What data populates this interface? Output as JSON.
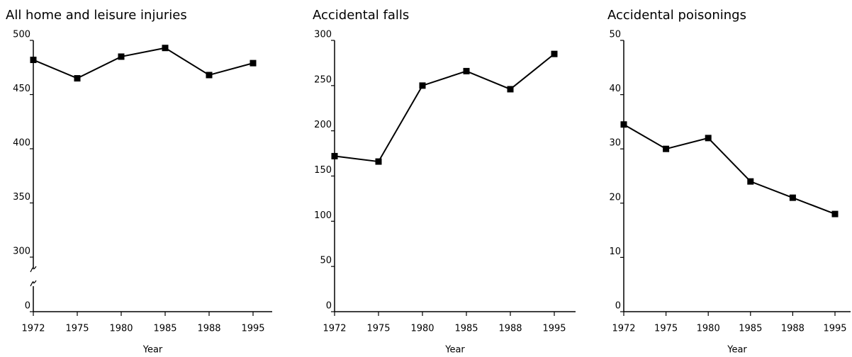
{
  "chart_data": [
    {
      "type": "line",
      "title": "All home and leisure injuries",
      "x_label": "Year",
      "categories": [
        "1972",
        "1975",
        "1980",
        "1985",
        "1988",
        "1995"
      ],
      "values": [
        482,
        465,
        485,
        493,
        468,
        479
      ],
      "color": "#000000",
      "ylim": [
        0,
        500
      ],
      "yticks": [
        0,
        300,
        350,
        400,
        450,
        500
      ],
      "axis_break": [
        0,
        300
      ]
    },
    {
      "type": "line",
      "title": "Accidental falls",
      "x_label": "Year",
      "categories": [
        "1972",
        "1975",
        "1980",
        "1985",
        "1988",
        "1995"
      ],
      "values": [
        172,
        166,
        250,
        266,
        246,
        285
      ],
      "color": "#000000",
      "ylim": [
        0,
        300
      ],
      "yticks": [
        0,
        50,
        100,
        150,
        200,
        250,
        300
      ]
    },
    {
      "type": "line",
      "title": "Accidental poisonings",
      "x_label": "Year",
      "categories": [
        "1972",
        "1975",
        "1980",
        "1985",
        "1988",
        "1995"
      ],
      "values": [
        34.5,
        30,
        32,
        24,
        21,
        18
      ],
      "color": "#000000",
      "ylim": [
        0,
        50
      ],
      "yticks": [
        0,
        10,
        20,
        30,
        40,
        50
      ]
    }
  ]
}
